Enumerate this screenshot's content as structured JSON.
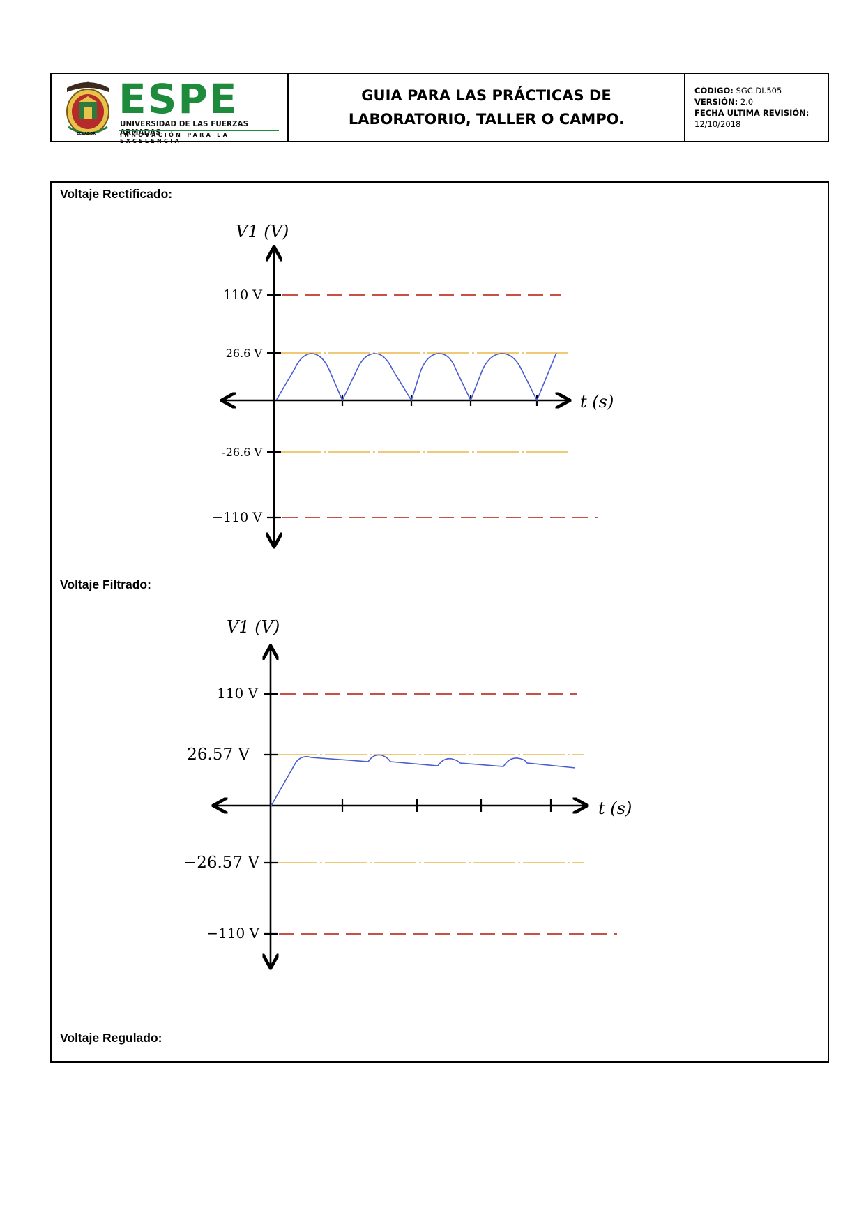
{
  "header": {
    "logo": {
      "name": "ESPE",
      "subtitle": "UNIVERSIDAD DE LAS FUERZAS ARMADAS",
      "tagline": "INNOVACIÓN PARA LA EXCELENCIA",
      "country": "ECUADOR"
    },
    "title_line1": "GUIA PARA LAS PRÁCTICAS DE",
    "title_line2": "LABORATORIO, TALLER O CAMPO.",
    "meta": {
      "code_label": "CÓDIGO:",
      "code_value": "SGC.DI.505",
      "version_label": "VERSIÓN:",
      "version_value": "2.0",
      "revision_label": "FECHA ULTIMA REVISIÓN:",
      "revision_value": "12/10/2018"
    }
  },
  "sections": {
    "rectified": "Voltaje Rectificado:",
    "filtered": "Voltaje Filtrado:",
    "regulated": "Voltaje Regulado:"
  },
  "colors": {
    "signal": "#4a5ccf",
    "peak_line": "#e8b84a",
    "max_line": "#c0392b",
    "logo_green": "#1e8a3c"
  },
  "chart_data": [
    {
      "type": "line",
      "title": "",
      "ylabel": "V1 (V)",
      "xlabel": "t (s)",
      "y_ticks": [
        "110 V",
        "26.6 V",
        "-26.6 V",
        "−110 V"
      ],
      "reference_lines": [
        110,
        26.6,
        -26.6,
        -110
      ],
      "series": [
        {
          "shape": "full-wave rectified",
          "peak": 26.6,
          "x": [
            0,
            1,
            2,
            3,
            4
          ],
          "y": [
            0,
            0,
            0,
            0,
            0
          ]
        }
      ]
    },
    {
      "type": "line",
      "title": "",
      "ylabel": "V1 (V)",
      "xlabel": "t (s)",
      "y_ticks": [
        "110 V",
        "26.57 V",
        "−26.57 V",
        "−110 V"
      ],
      "reference_lines": [
        110,
        26.57,
        -26.57,
        -110
      ],
      "series": [
        {
          "shape": "filtered ripple",
          "peak": 26.57
        }
      ]
    }
  ]
}
